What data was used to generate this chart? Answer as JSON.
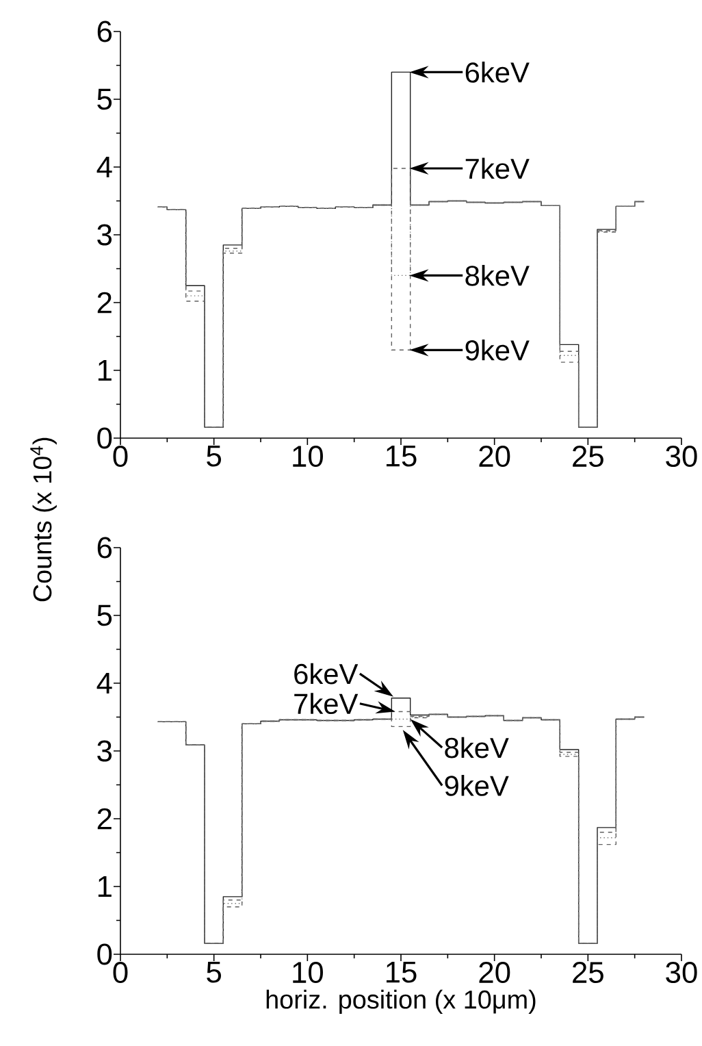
{
  "chart_data": [
    {
      "type": "step",
      "ylabel": "Counts (x 10$^{4}$)",
      "x": [
        2,
        3,
        4,
        5,
        6,
        7,
        8,
        9,
        10,
        11,
        12,
        13,
        14,
        15,
        16,
        17,
        18,
        19,
        20,
        21,
        22,
        23,
        24,
        25,
        26,
        27,
        28
      ],
      "series": [
        {
          "name": "6keV",
          "color": "#202020",
          "line_style": "solid",
          "values": [
            3.41,
            3.37,
            2.25,
            0.16,
            2.85,
            3.39,
            3.41,
            3.42,
            3.4,
            3.39,
            3.41,
            3.4,
            3.44,
            5.4,
            3.44,
            3.49,
            3.5,
            3.48,
            3.47,
            3.48,
            3.49,
            3.43,
            1.38,
            0.16,
            3.08,
            3.42,
            3.49
          ]
        },
        {
          "name": "7keV",
          "color": "#606060",
          "line_style": "dashed",
          "values": [
            3.41,
            3.37,
            2.17,
            0.16,
            2.8,
            3.39,
            3.41,
            3.42,
            3.4,
            3.39,
            3.41,
            3.4,
            3.44,
            3.98,
            3.44,
            3.49,
            3.5,
            3.48,
            3.47,
            3.48,
            3.49,
            3.43,
            1.28,
            0.16,
            3.06,
            3.42,
            3.49
          ]
        },
        {
          "name": "8keV",
          "color": "#707070",
          "line_style": "dotted",
          "values": [
            3.41,
            3.37,
            2.1,
            0.16,
            2.76,
            3.39,
            3.41,
            3.42,
            3.4,
            3.39,
            3.41,
            3.4,
            3.44,
            2.4,
            3.44,
            3.49,
            3.5,
            3.48,
            3.47,
            3.48,
            3.49,
            3.43,
            1.22,
            0.16,
            3.05,
            3.42,
            3.49
          ]
        },
        {
          "name": "9keV",
          "color": "#606060",
          "line_style": "dashed",
          "values": [
            3.41,
            3.37,
            2.02,
            0.16,
            2.73,
            3.39,
            3.41,
            3.42,
            3.4,
            3.39,
            3.41,
            3.4,
            3.44,
            1.3,
            3.44,
            3.49,
            3.5,
            3.48,
            3.47,
            3.48,
            3.49,
            3.43,
            1.12,
            0.16,
            3.04,
            3.42,
            3.49
          ]
        }
      ],
      "xlim": [
        0,
        30
      ],
      "xticks": [
        0,
        5,
        10,
        15,
        20,
        25,
        30
      ],
      "ylim": [
        0,
        6
      ],
      "yticks": [
        0,
        1,
        2,
        3,
        4,
        5,
        6
      ]
    },
    {
      "type": "step",
      "xlabel": "horiz. position (x 10μm)",
      "x": [
        2,
        3,
        4,
        5,
        6,
        7,
        8,
        9,
        10,
        11,
        12,
        13,
        14,
        15,
        16,
        17,
        18,
        19,
        20,
        21,
        22,
        23,
        24,
        25,
        26,
        27,
        28
      ],
      "series": [
        {
          "name": "6keV",
          "color": "#202020",
          "line_style": "solid",
          "values": [
            3.43,
            3.43,
            3.09,
            0.16,
            0.85,
            3.4,
            3.44,
            3.46,
            3.46,
            3.45,
            3.45,
            3.46,
            3.47,
            3.78,
            3.53,
            3.54,
            3.5,
            3.51,
            3.52,
            3.45,
            3.49,
            3.46,
            3.02,
            0.16,
            1.87,
            3.47,
            3.5
          ]
        },
        {
          "name": "7keV",
          "color": "#606060",
          "line_style": "dashed",
          "values": [
            3.43,
            3.43,
            3.09,
            0.16,
            0.8,
            3.4,
            3.44,
            3.46,
            3.46,
            3.45,
            3.45,
            3.46,
            3.47,
            3.58,
            3.51,
            3.54,
            3.5,
            3.51,
            3.52,
            3.45,
            3.49,
            3.46,
            2.98,
            0.16,
            1.8,
            3.47,
            3.5
          ]
        },
        {
          "name": "8keV",
          "color": "#707070",
          "line_style": "dotted",
          "values": [
            3.43,
            3.43,
            3.09,
            0.16,
            0.75,
            3.4,
            3.44,
            3.46,
            3.46,
            3.45,
            3.45,
            3.46,
            3.47,
            3.47,
            3.5,
            3.54,
            3.5,
            3.51,
            3.52,
            3.45,
            3.49,
            3.46,
            2.95,
            0.16,
            1.72,
            3.47,
            3.5
          ]
        },
        {
          "name": "9keV",
          "color": "#606060",
          "line_style": "dashed",
          "values": [
            3.43,
            3.43,
            3.09,
            0.16,
            0.7,
            3.4,
            3.44,
            3.46,
            3.46,
            3.45,
            3.45,
            3.46,
            3.47,
            3.36,
            3.49,
            3.54,
            3.5,
            3.51,
            3.52,
            3.45,
            3.49,
            3.46,
            2.92,
            0.16,
            1.62,
            3.47,
            3.5
          ]
        }
      ],
      "xlim": [
        0,
        30
      ],
      "xticks": [
        0,
        5,
        10,
        15,
        20,
        25,
        30
      ],
      "ylim": [
        0,
        6
      ],
      "yticks": [
        0,
        1,
        2,
        3,
        4,
        5,
        6
      ]
    }
  ]
}
